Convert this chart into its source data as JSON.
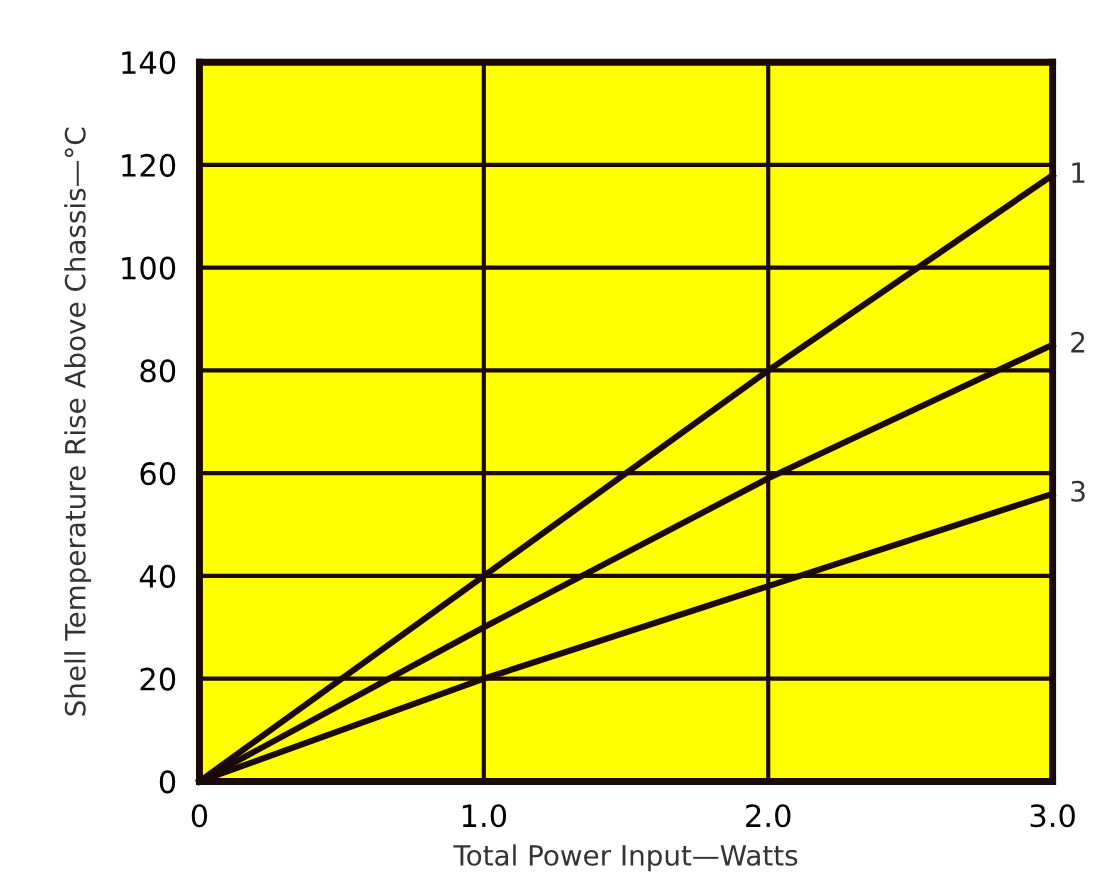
{
  "chart_data": {
    "type": "line",
    "xlabel": "Total Power Input—Watts",
    "ylabel": "Shell Temperature Rise Above Chassis—°C",
    "x": [
      0,
      1.0,
      2.0,
      3.0
    ],
    "series": [
      {
        "name": "1",
        "color": "#1a0a0a",
        "values": [
          0,
          40,
          80,
          118
        ]
      },
      {
        "name": "2",
        "color": "#1a0a0a",
        "values": [
          0,
          30,
          59,
          85
        ]
      },
      {
        "name": "3",
        "color": "#1a0a0a",
        "values": [
          0,
          20,
          38,
          56
        ]
      }
    ],
    "xlim": [
      0,
      3.0
    ],
    "ylim": [
      0,
      140
    ],
    "xticks": [
      0,
      {
        "value": 1.0,
        "label": "1.0"
      },
      {
        "value": 2.0,
        "label": "2.0"
      },
      {
        "value": 3.0,
        "label": "3.0"
      }
    ],
    "yticks": [
      0,
      20,
      40,
      60,
      80,
      100,
      120,
      140
    ],
    "grid": true,
    "legend": false,
    "marker": "none",
    "line_style": "solid"
  }
}
